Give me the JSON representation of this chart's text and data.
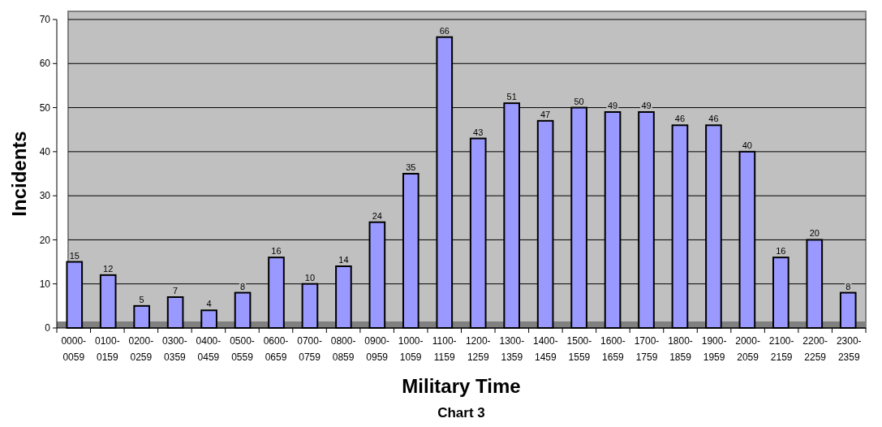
{
  "chart_data": {
    "type": "bar",
    "xlabel": "Military Time",
    "ylabel": "Incidents",
    "annotations": [
      "Chart 3"
    ],
    "categories": [
      "0000-0059",
      "0100-0159",
      "0200-0259",
      "0300-0359",
      "0400-0459",
      "0500-0559",
      "0600-0659",
      "0700-0759",
      "0800-0859",
      "0900-0959",
      "1000-1059",
      "1100-1159",
      "1200-1259",
      "1300-1359",
      "1400-1459",
      "1500-1559",
      "1600-1659",
      "1700-1759",
      "1800-1859",
      "1900-1959",
      "2000-2059",
      "2100-2159",
      "2200-2259",
      "2300-2359"
    ],
    "values": [
      15,
      12,
      5,
      7,
      4,
      8,
      16,
      10,
      14,
      24,
      35,
      66,
      43,
      51,
      47,
      50,
      49,
      49,
      46,
      46,
      40,
      16,
      20,
      8
    ],
    "color": "#9999ff",
    "ylim": [
      0,
      70
    ],
    "yticks": [
      0,
      10,
      20,
      30,
      40,
      50,
      60,
      70
    ],
    "grid": "y",
    "data_labels": true
  }
}
